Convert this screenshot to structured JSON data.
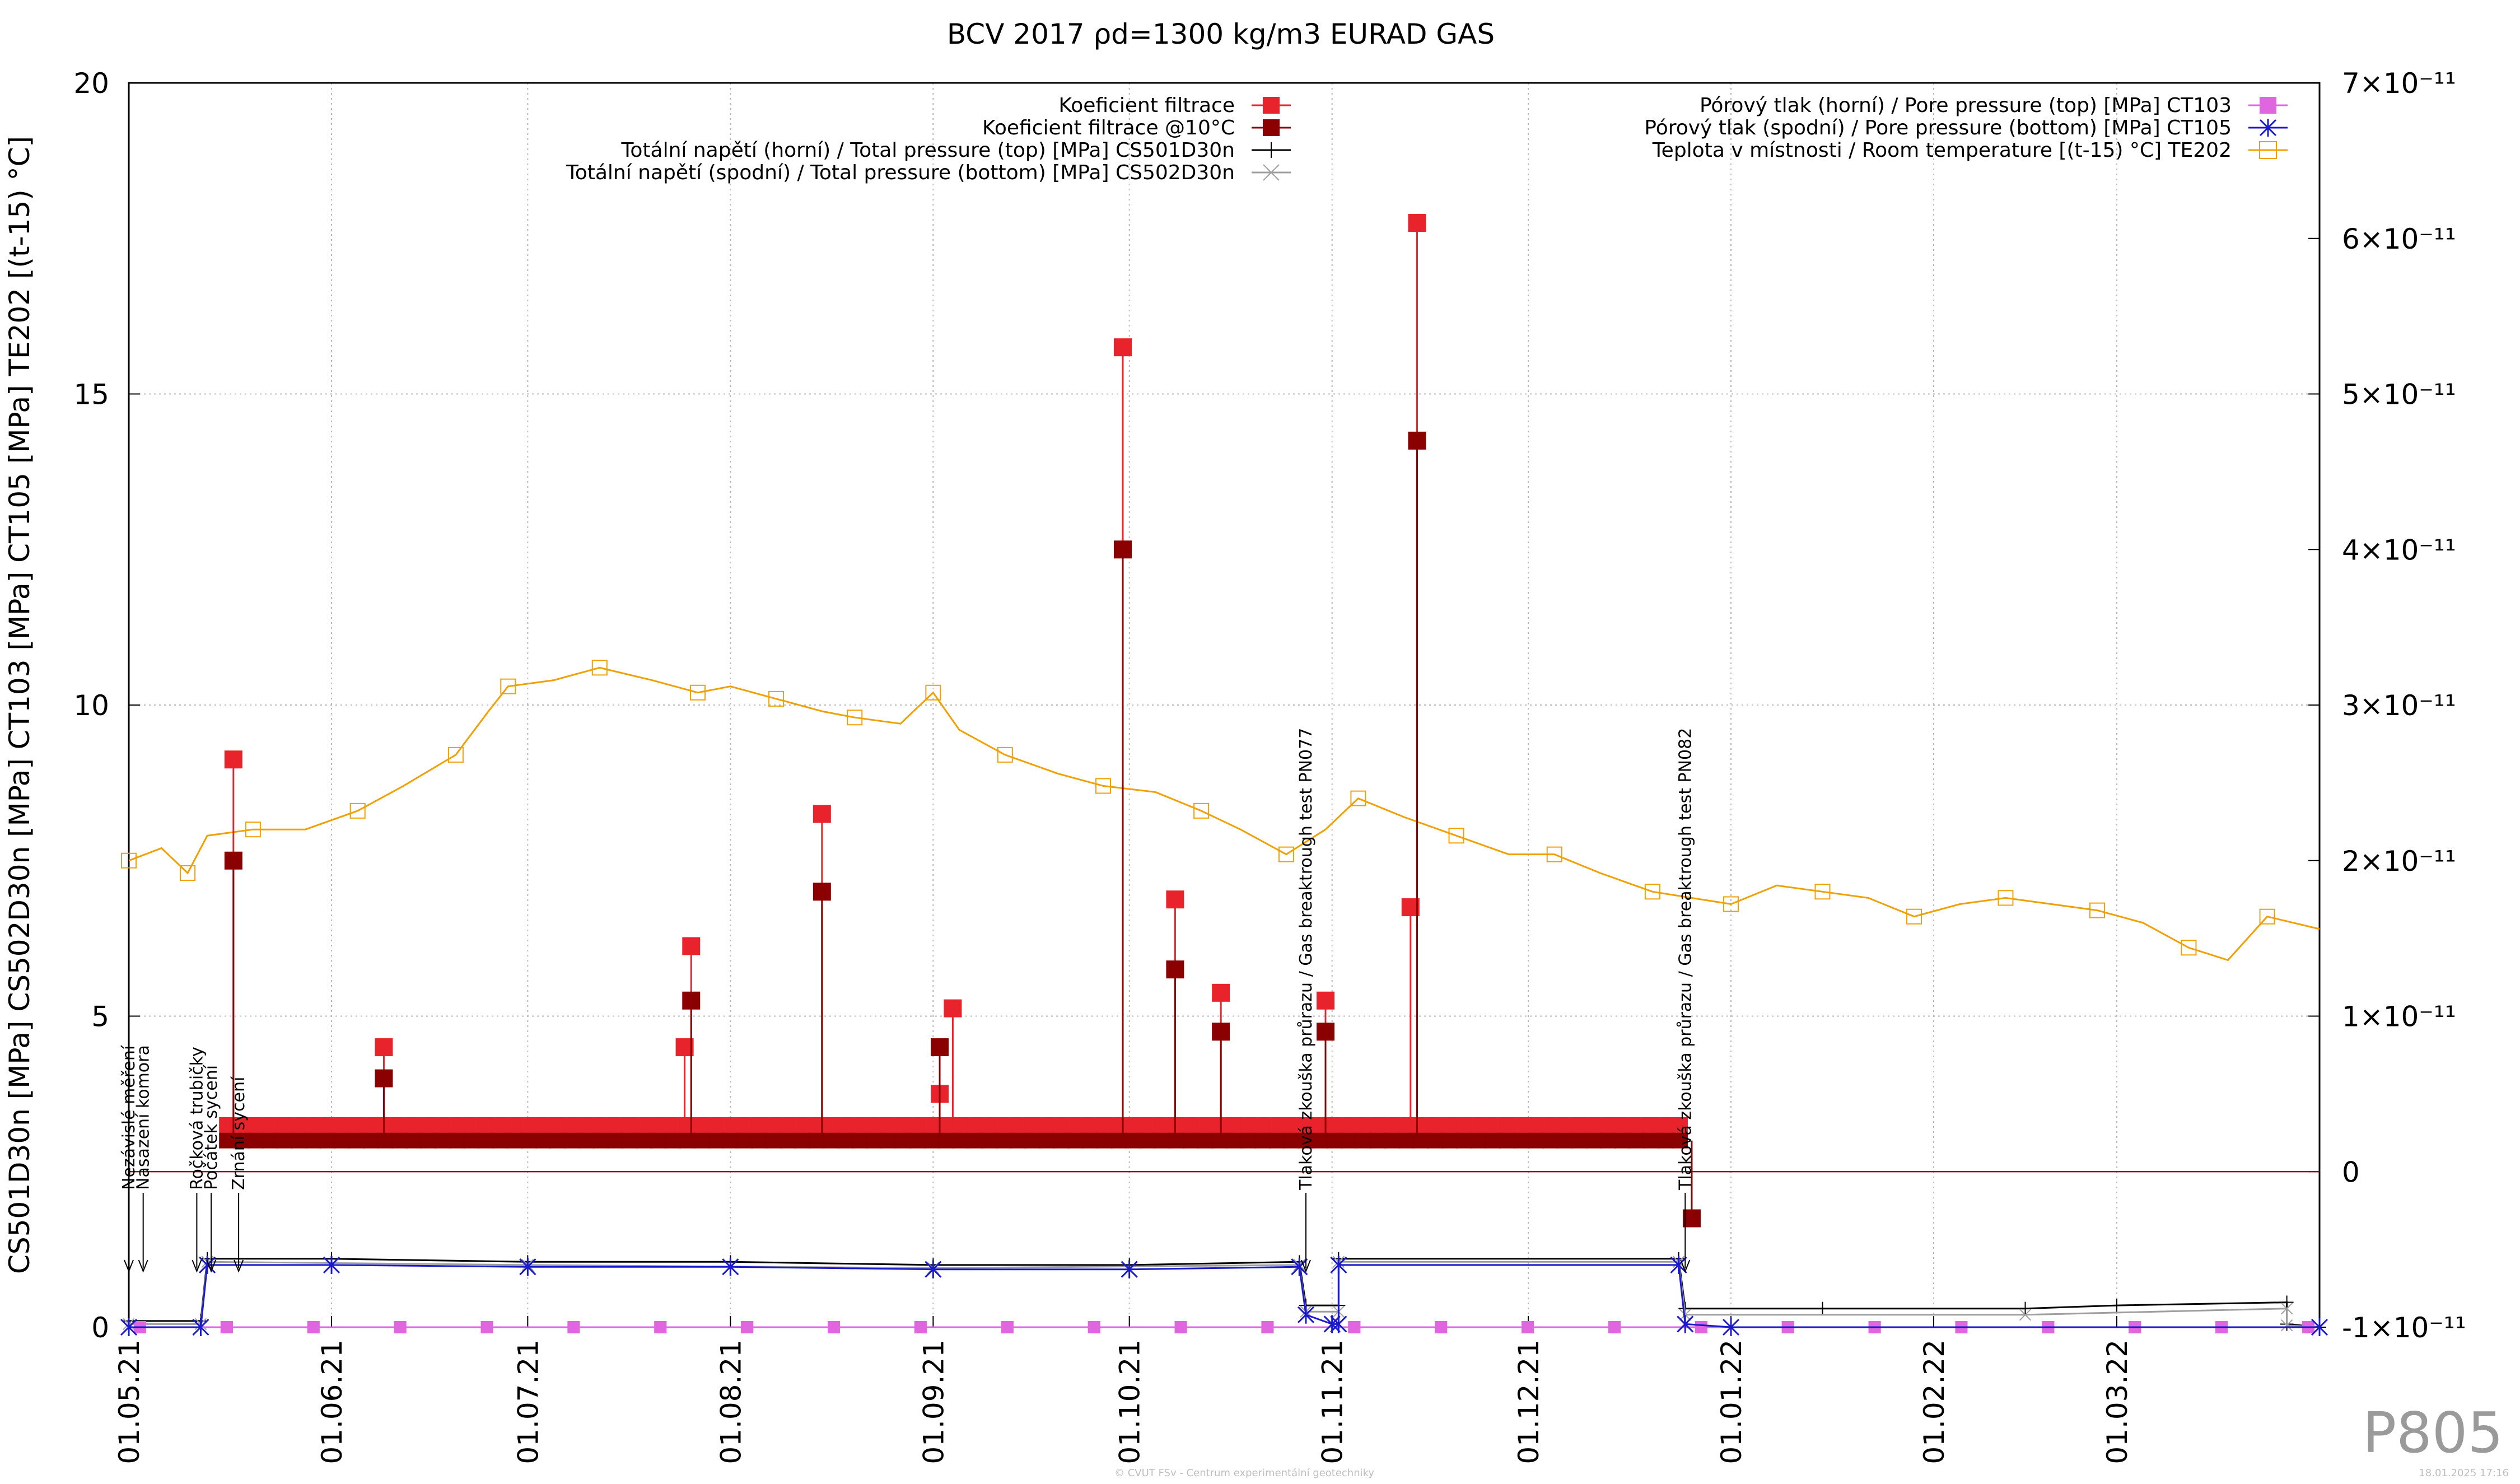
{
  "chart_data": {
    "type": "line",
    "title": "BCV 2017 ρd=1300 kg/m3 EURAD GAS",
    "ylabel": "CS501D30n [MPa] CS502D30n [MPa] CT103 [MPa] CT105 [MPa] TE202 [(t-15) °C]",
    "y2label": "",
    "xlabel": "",
    "x_type": "date",
    "xlim": [
      "2021-05-01",
      "2022-04-01"
    ],
    "ylim": [
      0,
      20
    ],
    "y2lim": [
      -1e-11,
      7e-11
    ],
    "x_ticks": [
      "01.05.21",
      "01.06.21",
      "01.07.21",
      "01.08.21",
      "01.09.21",
      "01.10.21",
      "01.11.21",
      "01.12.21",
      "01.01.22",
      "01.02.22",
      "01.03.22"
    ],
    "y_ticks": [
      "0",
      "5",
      "10",
      "15",
      "20"
    ],
    "y2_ticks": [
      "-1×10⁻¹¹",
      "0",
      "1×10⁻¹¹",
      "2×10⁻¹¹",
      "3×10⁻¹¹",
      "4×10⁻¹¹",
      "5×10⁻¹¹",
      "6×10⁻¹¹",
      "7×10⁻¹¹"
    ],
    "grid": true,
    "legend_left": [
      {
        "name": "Koeficient filtrace",
        "color": "#e8232c",
        "marker": "square"
      },
      {
        "name": "Koeficient filtrace @10°C",
        "color": "#8b0000",
        "marker": "square"
      },
      {
        "name": "Totální napětí (horní) / Total pressure (top) [MPa] CS501D30n",
        "color": "#000000",
        "marker": "plus"
      },
      {
        "name": "Totální napětí (spodní) / Total pressure (bottom) [MPa] CS502D30n",
        "color": "#9e9e9e",
        "marker": "cross"
      }
    ],
    "legend_right": [
      {
        "name": "Pórový tlak (horní) / Pore pressure (top) [MPa] CT103",
        "color": "#e066e0",
        "marker": "square"
      },
      {
        "name": "Pórový tlak (spodní) / Pore pressure (bottom) [MPa] CT105",
        "color": "#1a1acc",
        "marker": "star"
      },
      {
        "name": "Teplota v místnosti / Room temperature [(t-15) °C] TE202",
        "color": "#f0a000",
        "marker": "open-square"
      }
    ],
    "series": [
      {
        "name": "Teplota v místnosti / Room temperature [(t-15) °C] TE202",
        "axis": "y",
        "points": [
          [
            "2021-05-01",
            7.5
          ],
          [
            "2021-05-06",
            7.7
          ],
          [
            "2021-05-10",
            7.3
          ],
          [
            "2021-05-13",
            7.9
          ],
          [
            "2021-05-20",
            8.0
          ],
          [
            "2021-05-28",
            8.0
          ],
          [
            "2021-06-05",
            8.3
          ],
          [
            "2021-06-12",
            8.7
          ],
          [
            "2021-06-20",
            9.2
          ],
          [
            "2021-06-25",
            9.9
          ],
          [
            "2021-06-28",
            10.3
          ],
          [
            "2021-07-05",
            10.4
          ],
          [
            "2021-07-12",
            10.6
          ],
          [
            "2021-07-20",
            10.4
          ],
          [
            "2021-07-27",
            10.2
          ],
          [
            "2021-08-01",
            10.3
          ],
          [
            "2021-08-08",
            10.1
          ],
          [
            "2021-08-15",
            9.9
          ],
          [
            "2021-08-20",
            9.8
          ],
          [
            "2021-08-27",
            9.7
          ],
          [
            "2021-09-01",
            10.2
          ],
          [
            "2021-09-05",
            9.6
          ],
          [
            "2021-09-12",
            9.2
          ],
          [
            "2021-09-20",
            8.9
          ],
          [
            "2021-09-27",
            8.7
          ],
          [
            "2021-10-05",
            8.6
          ],
          [
            "2021-10-12",
            8.3
          ],
          [
            "2021-10-18",
            8.0
          ],
          [
            "2021-10-25",
            7.6
          ],
          [
            "2021-10-31",
            8.0
          ],
          [
            "2021-11-05",
            8.5
          ],
          [
            "2021-11-12",
            8.2
          ],
          [
            "2021-11-20",
            7.9
          ],
          [
            "2021-11-28",
            7.6
          ],
          [
            "2021-12-05",
            7.6
          ],
          [
            "2021-12-12",
            7.3
          ],
          [
            "2021-12-20",
            7.0
          ],
          [
            "2021-12-26",
            6.9
          ],
          [
            "2022-01-01",
            6.8
          ],
          [
            "2022-01-08",
            7.1
          ],
          [
            "2022-01-15",
            7.0
          ],
          [
            "2022-01-22",
            6.9
          ],
          [
            "2022-01-29",
            6.6
          ],
          [
            "2022-02-05",
            6.8
          ],
          [
            "2022-02-12",
            6.9
          ],
          [
            "2022-02-19",
            6.8
          ],
          [
            "2022-02-26",
            6.7
          ],
          [
            "2022-03-05",
            6.5
          ],
          [
            "2022-03-12",
            6.1
          ],
          [
            "2022-03-18",
            5.9
          ],
          [
            "2022-03-24",
            6.6
          ],
          [
            "2022-04-01",
            6.4
          ]
        ]
      },
      {
        "name": "Totální napětí (horní) / Total pressure (top) [MPa] CS501D30n",
        "axis": "y",
        "points": [
          [
            "2021-05-01",
            0.1
          ],
          [
            "2021-05-12",
            0.1
          ],
          [
            "2021-05-13",
            1.1
          ],
          [
            "2021-06-01",
            1.1
          ],
          [
            "2021-07-01",
            1.05
          ],
          [
            "2021-08-01",
            1.05
          ],
          [
            "2021-09-01",
            1.0
          ],
          [
            "2021-10-01",
            1.0
          ],
          [
            "2021-10-27",
            1.05
          ],
          [
            "2021-10-28",
            0.35
          ],
          [
            "2021-11-02",
            0.35
          ],
          [
            "2021-11-02",
            1.1
          ],
          [
            "2021-12-24",
            1.1
          ],
          [
            "2021-12-25",
            0.3
          ],
          [
            "2022-01-15",
            0.3
          ],
          [
            "2022-02-15",
            0.3
          ],
          [
            "2022-03-01",
            0.35
          ],
          [
            "2022-03-27",
            0.4
          ],
          [
            "2022-03-27",
            0.05
          ],
          [
            "2022-04-01",
            0.0
          ]
        ]
      },
      {
        "name": "Totální napětí (spodní) / Total pressure (bottom) [MPa] CS502D30n",
        "axis": "y",
        "points": [
          [
            "2021-05-01",
            0.05
          ],
          [
            "2021-05-12",
            0.05
          ],
          [
            "2021-05-13",
            1.05
          ],
          [
            "2021-07-01",
            1.0
          ],
          [
            "2021-09-01",
            0.95
          ],
          [
            "2021-10-27",
            1.0
          ],
          [
            "2021-10-28",
            0.25
          ],
          [
            "2021-11-02",
            0.25
          ],
          [
            "2021-11-02",
            1.05
          ],
          [
            "2021-12-24",
            1.05
          ],
          [
            "2021-12-25",
            0.2
          ],
          [
            "2022-02-15",
            0.2
          ],
          [
            "2022-03-27",
            0.3
          ],
          [
            "2022-03-27",
            0.03
          ],
          [
            "2022-04-01",
            0.0
          ]
        ]
      },
      {
        "name": "Pórový tlak (horní) / Pore pressure (top) [MPa] CT103",
        "axis": "y",
        "points": [
          [
            "2021-05-01",
            0.0
          ],
          [
            "2022-04-01",
            0.0
          ]
        ]
      },
      {
        "name": "Pórový tlak (spodní) / Pore pressure (bottom) [MPa] CT105",
        "axis": "y",
        "points": [
          [
            "2021-05-01",
            0.0
          ],
          [
            "2021-05-12",
            0.0
          ],
          [
            "2021-05-13",
            1.0
          ],
          [
            "2021-06-01",
            1.0
          ],
          [
            "2021-07-01",
            0.97
          ],
          [
            "2021-08-01",
            0.97
          ],
          [
            "2021-09-01",
            0.93
          ],
          [
            "2021-10-01",
            0.93
          ],
          [
            "2021-10-27",
            0.97
          ],
          [
            "2021-10-28",
            0.2
          ],
          [
            "2021-11-01",
            0.05
          ],
          [
            "2021-11-02",
            0.05
          ],
          [
            "2021-11-02",
            1.0
          ],
          [
            "2021-12-24",
            1.0
          ],
          [
            "2021-12-25",
            0.05
          ],
          [
            "2022-01-01",
            0.0
          ],
          [
            "2022-04-01",
            0.0
          ]
        ]
      },
      {
        "name": "Koeficient filtrace",
        "axis": "y2",
        "spikes": [
          [
            "2021-05-17",
            2.65e-11
          ],
          [
            "2021-06-09",
            8e-12
          ],
          [
            "2021-07-25",
            8e-12
          ],
          [
            "2021-07-26",
            1.45e-11
          ],
          [
            "2021-08-15",
            2.3e-11
          ],
          [
            "2021-09-02",
            5e-12
          ],
          [
            "2021-09-04",
            1.05e-11
          ],
          [
            "2021-09-30",
            5.3e-11
          ],
          [
            "2021-10-08",
            1.75e-11
          ],
          [
            "2021-10-15",
            1.15e-11
          ],
          [
            "2021-10-31",
            1.1e-11
          ],
          [
            "2021-11-13",
            1.7e-11
          ],
          [
            "2021-11-14",
            6.1e-11
          ]
        ],
        "baseline": 3e-12
      },
      {
        "name": "Koeficient filtrace @10°C",
        "axis": "y2",
        "spikes": [
          [
            "2021-05-17",
            2e-11
          ],
          [
            "2021-06-09",
            6e-12
          ],
          [
            "2021-07-26",
            1.1e-11
          ],
          [
            "2021-08-15",
            1.8e-11
          ],
          [
            "2021-09-02",
            8e-12
          ],
          [
            "2021-09-30",
            4e-11
          ],
          [
            "2021-10-08",
            1.3e-11
          ],
          [
            "2021-10-15",
            9e-12
          ],
          [
            "2021-10-31",
            9e-12
          ],
          [
            "2021-11-14",
            4.7e-11
          ],
          [
            "2021-12-26",
            -3e-12
          ]
        ],
        "baseline": 2e-12
      }
    ],
    "annotations": [
      {
        "date": "2021-05-01",
        "text": "Nezávislé měření"
      },
      {
        "date": "2021-05-02",
        "text": "Nasazení komora"
      },
      {
        "date": "2021-05-09",
        "text": "Ročková trubičky"
      },
      {
        "date": "2021-05-10",
        "text": "Počátek sycení"
      },
      {
        "date": "2021-05-13",
        "text": "Zrnání sycení"
      },
      {
        "date": "2021-10-28",
        "text": "Tlaková zkouška průrazu / Gas breaktrough test PN077"
      },
      {
        "date": "2021-12-25",
        "text": "Tlaková zkouška průrazu / Gas breaktrough test PN082"
      }
    ]
  },
  "watermark": "P805",
  "footer_copyright": "© CVUT FSv - Centrum experimentální geotechniky",
  "footer_timestamp": "18.01.2025 17:16"
}
